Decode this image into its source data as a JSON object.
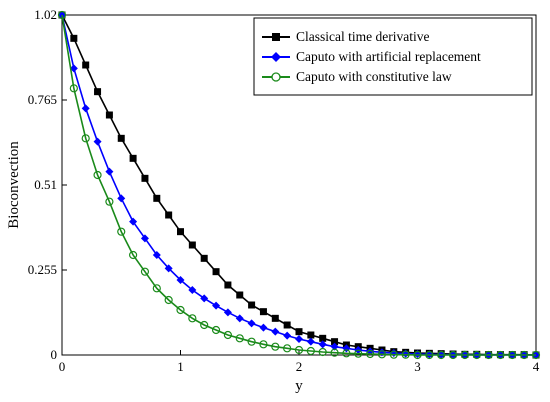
{
  "chart_data": {
    "type": "line",
    "xlabel": "y",
    "ylabel": "Bioconvection",
    "xlim": [
      0,
      4
    ],
    "ylim": [
      0,
      1.02
    ],
    "x_ticks": [
      "0",
      "1",
      "2",
      "3",
      "4"
    ],
    "y_ticks": [
      "0",
      "0.255",
      "0.51",
      "0.765",
      "1.02"
    ],
    "x_tick_values": [
      0,
      1,
      2,
      3,
      4
    ],
    "y_tick_values": [
      0,
      0.255,
      0.51,
      0.765,
      1.02
    ],
    "grid": false,
    "legend_position": "top-right",
    "series": [
      {
        "name": "Classical time derivative",
        "color": "#000000",
        "marker": "filled-square",
        "x": [
          0,
          0.1,
          0.2,
          0.3,
          0.4,
          0.5,
          0.6,
          0.7,
          0.8,
          0.9,
          1.0,
          1.1,
          1.2,
          1.3,
          1.4,
          1.5,
          1.6,
          1.7,
          1.8,
          1.9,
          2.0,
          2.1,
          2.2,
          2.3,
          2.4,
          2.5,
          2.6,
          2.7,
          2.8,
          2.9,
          3.0,
          3.1,
          3.2,
          3.3,
          3.4,
          3.5,
          3.6,
          3.7,
          3.8,
          3.9,
          4.0
        ],
        "y": [
          1.02,
          0.95,
          0.87,
          0.79,
          0.72,
          0.65,
          0.59,
          0.53,
          0.47,
          0.42,
          0.37,
          0.33,
          0.29,
          0.25,
          0.21,
          0.18,
          0.15,
          0.13,
          0.11,
          0.09,
          0.07,
          0.06,
          0.05,
          0.04,
          0.03,
          0.025,
          0.02,
          0.015,
          0.01,
          0.008,
          0.006,
          0.005,
          0.004,
          0.003,
          0.002,
          0.002,
          0.001,
          0.001,
          0.001,
          0.001,
          0.0
        ]
      },
      {
        "name": "Caputo with artificial replacement",
        "color": "#0000ff",
        "marker": "filled-diamond",
        "x": [
          0,
          0.1,
          0.2,
          0.3,
          0.4,
          0.5,
          0.6,
          0.7,
          0.8,
          0.9,
          1.0,
          1.1,
          1.2,
          1.3,
          1.4,
          1.5,
          1.6,
          1.7,
          1.8,
          1.9,
          2.0,
          2.1,
          2.2,
          2.3,
          2.4,
          2.5,
          2.6,
          2.7,
          2.8,
          2.9,
          3.0,
          3.1,
          3.2,
          3.3,
          3.4,
          3.5,
          3.6,
          3.7,
          3.8,
          3.9,
          4.0
        ],
        "y": [
          1.02,
          0.86,
          0.74,
          0.64,
          0.55,
          0.47,
          0.4,
          0.35,
          0.3,
          0.26,
          0.225,
          0.195,
          0.17,
          0.148,
          0.128,
          0.11,
          0.095,
          0.082,
          0.07,
          0.058,
          0.048,
          0.04,
          0.032,
          0.025,
          0.02,
          0.015,
          0.011,
          0.008,
          0.006,
          0.004,
          0.003,
          0.002,
          0.001,
          0.001,
          0.001,
          0.0,
          0.0,
          0.0,
          0.0,
          0.0,
          0.0
        ]
      },
      {
        "name": "Caputo with constitutive law",
        "color": "#1a8a1a",
        "marker": "open-circle",
        "x": [
          0,
          0.1,
          0.2,
          0.3,
          0.4,
          0.5,
          0.6,
          0.7,
          0.8,
          0.9,
          1.0,
          1.1,
          1.2,
          1.3,
          1.4,
          1.5,
          1.6,
          1.7,
          1.8,
          1.9,
          2.0,
          2.1,
          2.2,
          2.3,
          2.4,
          2.5,
          2.6,
          2.7,
          2.8,
          2.9,
          3.0,
          3.1,
          3.2,
          3.3,
          3.4,
          3.5,
          3.6,
          3.7,
          3.8,
          3.9,
          4.0
        ],
        "y": [
          1.02,
          0.8,
          0.65,
          0.54,
          0.46,
          0.37,
          0.3,
          0.25,
          0.2,
          0.165,
          0.135,
          0.11,
          0.09,
          0.075,
          0.06,
          0.05,
          0.04,
          0.032,
          0.025,
          0.02,
          0.015,
          0.012,
          0.009,
          0.007,
          0.005,
          0.004,
          0.003,
          0.002,
          0.001,
          0.001,
          0.0,
          0.0,
          0.0,
          0.0,
          0.0,
          0.0,
          0.0,
          0.0,
          0.0,
          0.0,
          0.0
        ]
      }
    ]
  }
}
